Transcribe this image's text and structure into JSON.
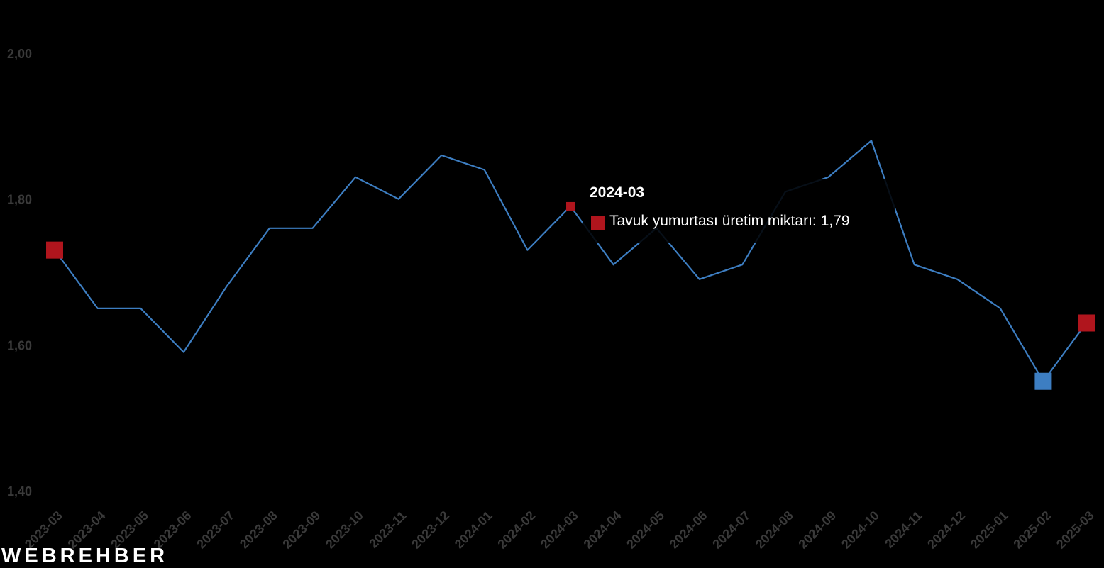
{
  "colors": {
    "line": "#3d7ec2",
    "max_min_marker_red": "#b0151d",
    "min_marker_blue": "#3d7ec2",
    "tick": "#3a3a3a",
    "background": "#000000"
  },
  "chart_data": {
    "type": "line",
    "title": "",
    "xlabel": "",
    "ylabel": "",
    "ylim": [
      1.4,
      2.0
    ],
    "yticks": [
      "1,40",
      "1,60",
      "1,80",
      "2,00"
    ],
    "ytick_values": [
      1.4,
      1.6,
      1.8,
      2.0
    ],
    "grid": false,
    "legend": "none",
    "categories": [
      "2023-03",
      "2023-04",
      "2023-05",
      "2023-06",
      "2023-07",
      "2023-08",
      "2023-09",
      "2023-10",
      "2023-11",
      "2023-12",
      "2024-01",
      "2024-02",
      "2024-03",
      "2024-04",
      "2024-05",
      "2024-06",
      "2024-07",
      "2024-08",
      "2024-09",
      "2024-10",
      "2024-11",
      "2024-12",
      "2025-01",
      "2025-02",
      "2025-03"
    ],
    "series": [
      {
        "name": "Tavuk yumurtası üretim miktarı",
        "values": [
          1.73,
          1.65,
          1.65,
          1.59,
          1.68,
          1.76,
          1.76,
          1.83,
          1.8,
          1.86,
          1.84,
          1.73,
          1.79,
          1.71,
          1.76,
          1.69,
          1.71,
          1.81,
          1.83,
          1.88,
          1.71,
          1.69,
          1.65,
          1.55,
          1.63
        ]
      }
    ],
    "markers": [
      {
        "category": "2023-03",
        "color": "red",
        "shape": "square"
      },
      {
        "category": "2024-03",
        "color": "red",
        "shape": "square-small"
      },
      {
        "category": "2025-02",
        "color": "blue",
        "shape": "square"
      },
      {
        "category": "2025-03",
        "color": "red",
        "shape": "square"
      }
    ],
    "tooltip": {
      "title": "2024-03",
      "series_label": "Tavuk yumurtası üretim miktarı:",
      "value": "1,79"
    }
  },
  "branding": {
    "logo_text": "WEBREHBER"
  }
}
